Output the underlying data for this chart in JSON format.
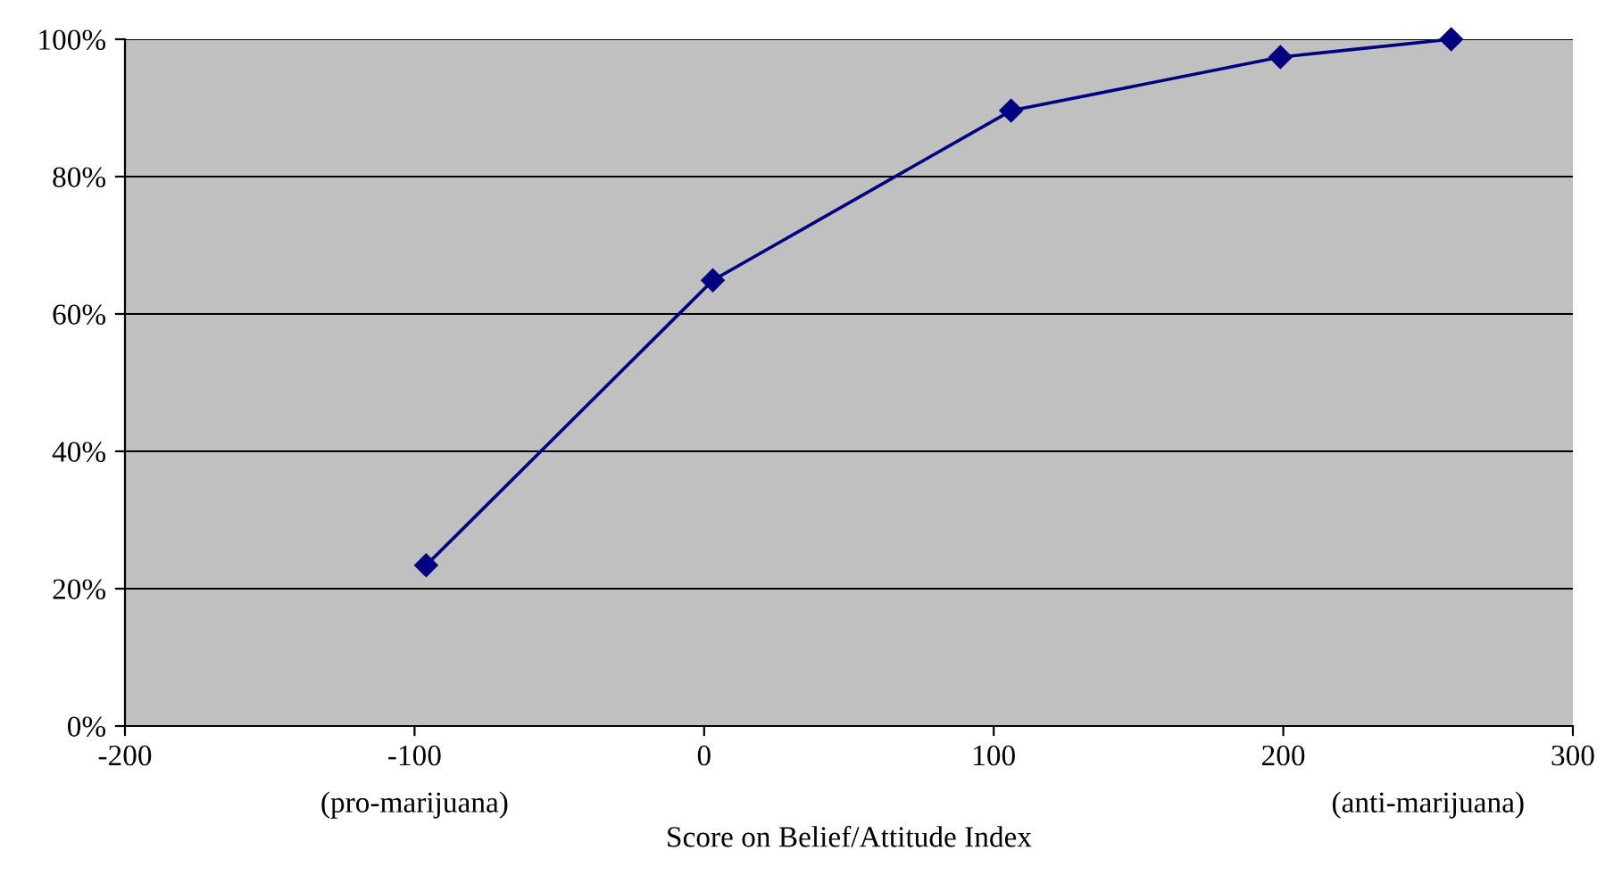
{
  "chart_data": {
    "type": "line",
    "xlabel": "Score on Belief/Attitude Index",
    "x": [
      -96,
      3,
      106,
      199,
      258
    ],
    "series": [
      {
        "color": "#000080",
        "values": [
          23.4,
          64.9,
          89.6,
          97.4,
          100
        ]
      }
    ],
    "xlim": [
      -200,
      300
    ],
    "xticks": [
      -200,
      -100,
      0,
      100,
      200,
      300
    ],
    "ylim": [
      0,
      100
    ],
    "yticks": [
      {
        "value": 0,
        "label": "0%"
      },
      {
        "value": 20,
        "label": "20%"
      },
      {
        "value": 40,
        "label": "40%"
      },
      {
        "value": 60,
        "label": "60%"
      },
      {
        "value": 80,
        "label": "80%"
      },
      {
        "value": 100,
        "label": "100%"
      }
    ],
    "annotations": [
      "(pro-marijuana)",
      "(anti-marijuana)"
    ],
    "grid": "y",
    "marker": "diamond",
    "line_style": "solid",
    "legend": false
  }
}
